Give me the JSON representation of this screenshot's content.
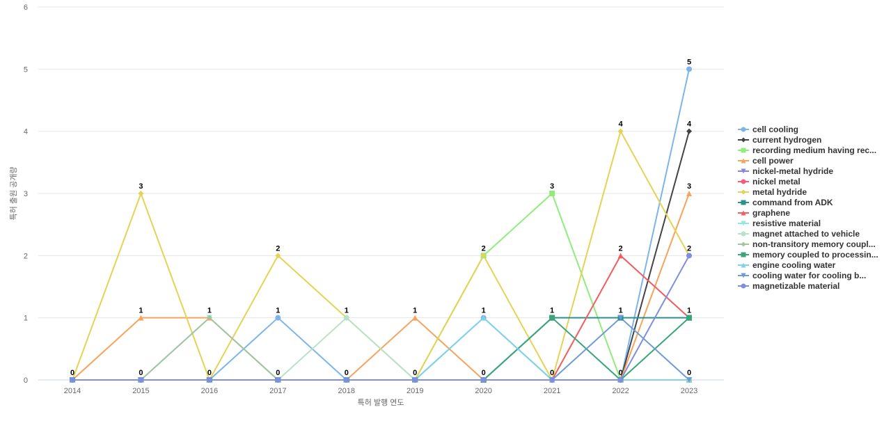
{
  "chart_data": {
    "type": "line",
    "x_label": "특허 발행 연도",
    "y_label": "특허 출원 공개량",
    "categories": [
      "2014",
      "2015",
      "2016",
      "2017",
      "2018",
      "2019",
      "2020",
      "2021",
      "2022",
      "2023"
    ],
    "ylim": [
      0,
      6
    ],
    "yticks": [
      0,
      1,
      2,
      3,
      4,
      5,
      6
    ],
    "grid": true,
    "legend": "right",
    "series": [
      {
        "name": "cell cooling",
        "color": "#7cb5ec",
        "marker": "circle",
        "values": [
          0,
          0,
          0,
          1,
          0,
          0,
          1,
          0,
          0,
          5
        ]
      },
      {
        "name": "current hydrogen",
        "color": "#434348",
        "marker": "diamond",
        "values": [
          0,
          0,
          0,
          0,
          0,
          0,
          0,
          0,
          0,
          4
        ]
      },
      {
        "name": "recording medium having rec...",
        "color": "#90ed7d",
        "marker": "square",
        "values": [
          0,
          0,
          0,
          0,
          0,
          0,
          2,
          3,
          0,
          0
        ]
      },
      {
        "name": "cell power",
        "color": "#f7a35c",
        "marker": "triangle",
        "values": [
          0,
          1,
          1,
          0,
          0,
          1,
          0,
          0,
          0,
          3
        ]
      },
      {
        "name": "nickel-metal hydride",
        "color": "#8085e9",
        "marker": "triangle-down",
        "values": [
          0,
          0,
          0,
          0,
          0,
          0,
          0,
          0,
          0,
          0
        ]
      },
      {
        "name": "nickel metal",
        "color": "#f15c80",
        "marker": "circle",
        "values": [
          0,
          0,
          0,
          0,
          0,
          0,
          0,
          0,
          0,
          0
        ]
      },
      {
        "name": "metal hydride",
        "color": "#e4d354",
        "marker": "diamond",
        "values": [
          0,
          3,
          0,
          2,
          1,
          0,
          2,
          0,
          4,
          2
        ]
      },
      {
        "name": "command from ADK",
        "color": "#2b908f",
        "marker": "square",
        "values": [
          0,
          0,
          0,
          0,
          0,
          0,
          0,
          1,
          1,
          1
        ]
      },
      {
        "name": "graphene",
        "color": "#f45b5b",
        "marker": "triangle",
        "values": [
          0,
          0,
          0,
          0,
          0,
          0,
          0,
          0,
          2,
          1
        ]
      },
      {
        "name": "resistive material",
        "color": "#91e8e1",
        "marker": "triangle-down",
        "values": [
          0,
          0,
          1,
          0,
          0,
          0,
          0,
          0,
          0,
          0
        ]
      },
      {
        "name": "magnet attached to vehicle",
        "color": "#b8e2c8",
        "marker": "circle",
        "values": [
          0,
          0,
          0,
          0,
          1,
          0,
          0,
          0,
          0,
          0
        ]
      },
      {
        "name": "non-transitory memory coupl...",
        "color": "#a3c4a0",
        "marker": "diamond",
        "values": [
          0,
          0,
          1,
          0,
          0,
          0,
          0,
          0,
          0,
          0
        ]
      },
      {
        "name": "memory coupled to processin...",
        "color": "#3aa57a",
        "marker": "square",
        "values": [
          0,
          0,
          0,
          0,
          0,
          0,
          0,
          1,
          0,
          1
        ]
      },
      {
        "name": "engine cooling water",
        "color": "#7fd3e8",
        "marker": "triangle",
        "values": [
          0,
          0,
          0,
          0,
          0,
          0,
          1,
          0,
          0,
          0
        ]
      },
      {
        "name": "cooling water for cooling b...",
        "color": "#6c9bd8",
        "marker": "triangle-down",
        "values": [
          0,
          0,
          0,
          0,
          0,
          0,
          0,
          0,
          1,
          0
        ]
      },
      {
        "name": "magnetizable material",
        "color": "#7f8ee0",
        "marker": "circle",
        "values": [
          0,
          0,
          0,
          0,
          0,
          0,
          0,
          0,
          0,
          2
        ]
      }
    ]
  }
}
